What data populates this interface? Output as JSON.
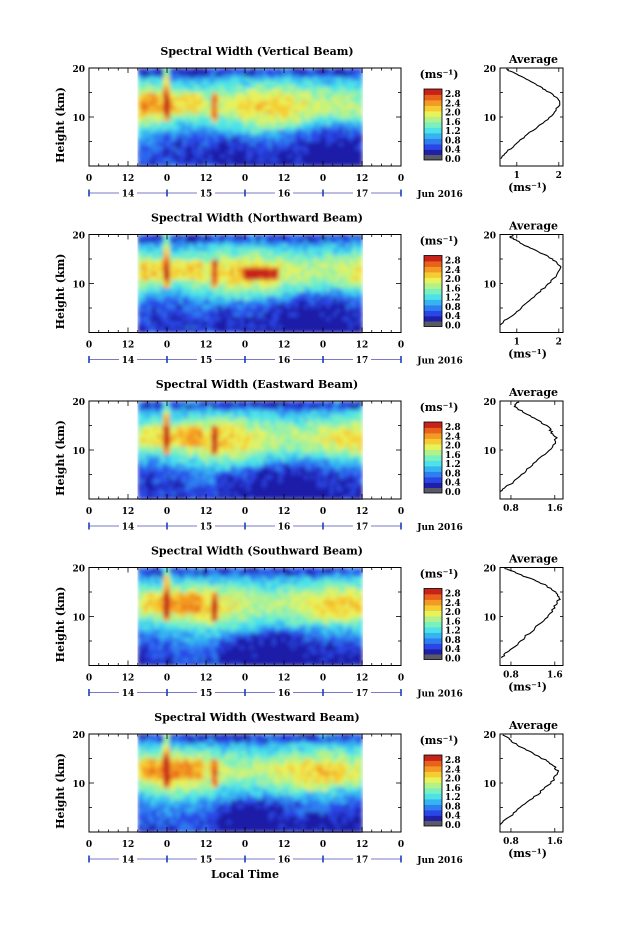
{
  "colors": {
    "scale": [
      "#1f1fa8",
      "#2a46e6",
      "#2f7ef0",
      "#36b4f2",
      "#4ee2e8",
      "#79f0bf",
      "#b3f28a",
      "#e8f25a",
      "#f6cc33",
      "#f39a24",
      "#e8621c",
      "#c7231a"
    ],
    "zero": "#5a5a66",
    "hour_line": "#7a78c8",
    "day_marker": "#1c3fbf"
  },
  "shared": {
    "colorbar_unit": "(ms⁻¹)",
    "colorbar_ticks": [
      "2.8",
      "2.4",
      "2.0",
      "1.6",
      "1.2",
      "0.8",
      "0.4",
      "0.0"
    ],
    "time_ticks": [
      "0",
      "12",
      "0",
      "12",
      "0",
      "12",
      "0",
      "12",
      "0"
    ],
    "day_labels": [
      "14",
      "15",
      "16",
      "17"
    ],
    "month_label": "Jun 2016",
    "y_axis_label": "Height (km)",
    "y_ticks": [
      "20",
      "10"
    ],
    "avg_title": "Average",
    "avg_unit": "(ms⁻¹)",
    "x_axis_label": "Local Time"
  },
  "chart_data": [
    {
      "type": "heatmap",
      "title": "Spectral Width (Vertical Beam)",
      "ylabel": "Height (km)",
      "ylim": [
        0,
        20
      ],
      "xlabel": "Local Time",
      "x_days": [
        "14",
        "15",
        "16",
        "17"
      ],
      "z_unit": "ms⁻¹",
      "z_range": [
        0.0,
        2.8
      ],
      "data_start_hour": 15,
      "data_end_hour": 84,
      "profile": {
        "title": "Average",
        "x_ticks": [
          "1",
          "2"
        ],
        "xlim": [
          0.6,
          2.1
        ],
        "xlabel": "(ms⁻¹)",
        "points": [
          [
            0.62,
            1.5
          ],
          [
            0.7,
            2.5
          ],
          [
            0.85,
            3.5
          ],
          [
            1.05,
            5
          ],
          [
            1.25,
            6.5
          ],
          [
            1.5,
            8
          ],
          [
            1.72,
            9.5
          ],
          [
            1.9,
            11
          ],
          [
            2.02,
            12.5
          ],
          [
            2.0,
            13.5
          ],
          [
            1.88,
            14.5
          ],
          [
            1.68,
            15.5
          ],
          [
            1.48,
            16.5
          ],
          [
            1.28,
            17.5
          ],
          [
            1.05,
            18.5
          ],
          [
            0.85,
            19.3
          ],
          [
            0.75,
            19.8
          ]
        ]
      }
    },
    {
      "type": "heatmap",
      "title": "Spectral Width (Northward Beam)",
      "ylabel": "Height (km)",
      "ylim": [
        0,
        20
      ],
      "xlabel": "Local Time",
      "x_days": [
        "14",
        "15",
        "16",
        "17"
      ],
      "z_unit": "ms⁻¹",
      "z_range": [
        0.0,
        2.8
      ],
      "data_start_hour": 15,
      "data_end_hour": 84,
      "profile": {
        "title": "Average",
        "x_ticks": [
          "1",
          "2"
        ],
        "xlim": [
          0.6,
          2.1
        ],
        "xlabel": "(ms⁻¹)",
        "points": [
          [
            0.62,
            1.5
          ],
          [
            0.72,
            2.5
          ],
          [
            0.9,
            3.5
          ],
          [
            1.1,
            5
          ],
          [
            1.3,
            6.5
          ],
          [
            1.5,
            8
          ],
          [
            1.7,
            9.5
          ],
          [
            1.88,
            11
          ],
          [
            2.0,
            12.5
          ],
          [
            2.05,
            13.5
          ],
          [
            1.92,
            14.5
          ],
          [
            1.75,
            15.5
          ],
          [
            1.5,
            16.5
          ],
          [
            1.25,
            17.5
          ],
          [
            1.05,
            18.5
          ],
          [
            0.95,
            19
          ],
          [
            0.85,
            19.5
          ],
          [
            0.9,
            19.9
          ]
        ]
      }
    },
    {
      "type": "heatmap",
      "title": "Spectral Width (Eastward Beam)",
      "ylabel": "Height (km)",
      "ylim": [
        0,
        20
      ],
      "xlabel": "Local Time",
      "x_days": [
        "14",
        "15",
        "16",
        "17"
      ],
      "z_unit": "ms⁻¹",
      "z_range": [
        0.0,
        2.8
      ],
      "data_start_hour": 15,
      "data_end_hour": 84,
      "profile": {
        "title": "Average",
        "x_ticks": [
          "0.8",
          "1.6"
        ],
        "xlim": [
          0.6,
          1.75
        ],
        "xlabel": "",
        "points": [
          [
            0.62,
            1.5
          ],
          [
            0.72,
            2.5
          ],
          [
            0.85,
            3.5
          ],
          [
            1.0,
            5
          ],
          [
            1.15,
            6.5
          ],
          [
            1.3,
            8
          ],
          [
            1.45,
            9.5
          ],
          [
            1.58,
            11
          ],
          [
            1.62,
            12.5
          ],
          [
            1.55,
            13.5
          ],
          [
            1.5,
            14.5
          ],
          [
            1.38,
            15.5
          ],
          [
            1.22,
            16.5
          ],
          [
            1.05,
            17.5
          ],
          [
            0.92,
            18.5
          ],
          [
            0.85,
            19.2
          ],
          [
            0.95,
            19.8
          ]
        ]
      }
    },
    {
      "type": "heatmap",
      "title": "Spectral Width (Southward Beam)",
      "ylabel": "Height (km)",
      "ylim": [
        0,
        20
      ],
      "xlabel": "Local Time",
      "x_days": [
        "14",
        "15",
        "16",
        "17"
      ],
      "z_unit": "ms⁻¹",
      "z_range": [
        0.0,
        2.8
      ],
      "data_start_hour": 15,
      "data_end_hour": 84,
      "profile": {
        "title": "Average",
        "x_ticks": [
          "0.8",
          "1.6"
        ],
        "xlim": [
          0.6,
          1.75
        ],
        "xlabel": "(ms⁻¹)",
        "points": [
          [
            0.62,
            1.5
          ],
          [
            0.7,
            2.5
          ],
          [
            0.82,
            3.5
          ],
          [
            0.98,
            5
          ],
          [
            1.12,
            6.5
          ],
          [
            1.28,
            8
          ],
          [
            1.42,
            9.5
          ],
          [
            1.55,
            11
          ],
          [
            1.62,
            12.5
          ],
          [
            1.68,
            13.5
          ],
          [
            1.65,
            14.5
          ],
          [
            1.55,
            15.5
          ],
          [
            1.4,
            16.5
          ],
          [
            1.2,
            17.5
          ],
          [
            0.98,
            18.5
          ],
          [
            0.8,
            19.3
          ],
          [
            0.68,
            19.8
          ]
        ]
      }
    },
    {
      "type": "heatmap",
      "title": "Spectral Width (Westward Beam)",
      "ylabel": "Height (km)",
      "ylim": [
        0,
        20
      ],
      "xlabel": "Local Time",
      "x_days": [
        "14",
        "15",
        "16",
        "17"
      ],
      "z_unit": "ms⁻¹",
      "z_range": [
        0.0,
        2.8
      ],
      "data_start_hour": 15,
      "data_end_hour": 84,
      "profile": {
        "title": "Average",
        "x_ticks": [
          "0.8",
          "1.6"
        ],
        "xlim": [
          0.6,
          1.75
        ],
        "xlabel": "(ms⁻¹)",
        "points": [
          [
            0.62,
            1.5
          ],
          [
            0.7,
            2.5
          ],
          [
            0.82,
            3.5
          ],
          [
            0.98,
            5
          ],
          [
            1.15,
            6.5
          ],
          [
            1.32,
            8
          ],
          [
            1.48,
            9.5
          ],
          [
            1.6,
            11
          ],
          [
            1.65,
            12.5
          ],
          [
            1.58,
            13.5
          ],
          [
            1.45,
            14.5
          ],
          [
            1.3,
            15.5
          ],
          [
            1.12,
            16.5
          ],
          [
            0.95,
            17.5
          ],
          [
            0.82,
            18.5
          ],
          [
            0.72,
            19.3
          ],
          [
            0.65,
            19.8
          ]
        ]
      }
    }
  ]
}
